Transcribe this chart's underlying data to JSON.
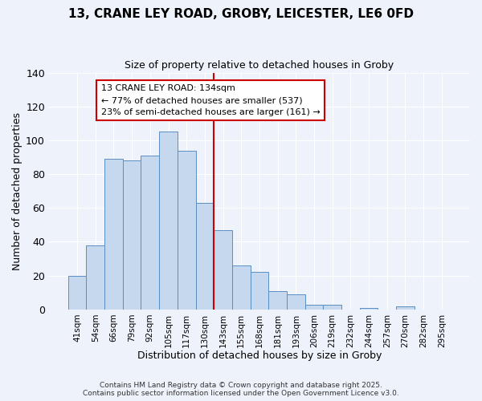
{
  "title": "13, CRANE LEY ROAD, GROBY, LEICESTER, LE6 0FD",
  "subtitle": "Size of property relative to detached houses in Groby",
  "xlabel": "Distribution of detached houses by size in Groby",
  "ylabel": "Number of detached properties",
  "bar_labels": [
    "41sqm",
    "54sqm",
    "66sqm",
    "79sqm",
    "92sqm",
    "105sqm",
    "117sqm",
    "130sqm",
    "143sqm",
    "155sqm",
    "168sqm",
    "181sqm",
    "193sqm",
    "206sqm",
    "219sqm",
    "232sqm",
    "244sqm",
    "257sqm",
    "270sqm",
    "282sqm",
    "295sqm"
  ],
  "bar_heights": [
    20,
    38,
    89,
    88,
    91,
    105,
    94,
    63,
    47,
    26,
    22,
    11,
    9,
    3,
    3,
    0,
    1,
    0,
    2,
    0,
    0
  ],
  "bar_color": "#c5d8ee",
  "bar_edge_color": "#5b8ec4",
  "vline_color": "#cc0000",
  "annotation_title": "13 CRANE LEY ROAD: 134sqm",
  "annotation_line1": "← 77% of detached houses are smaller (537)",
  "annotation_line2": "23% of semi-detached houses are larger (161) →",
  "annotation_box_edge": "#cc0000",
  "ylim": [
    0,
    140
  ],
  "yticks": [
    0,
    20,
    40,
    60,
    80,
    100,
    120,
    140
  ],
  "background_color": "#eef2fa",
  "grid_color": "#ffffff",
  "footer1": "Contains HM Land Registry data © Crown copyright and database right 2025.",
  "footer2": "Contains public sector information licensed under the Open Government Licence v3.0."
}
